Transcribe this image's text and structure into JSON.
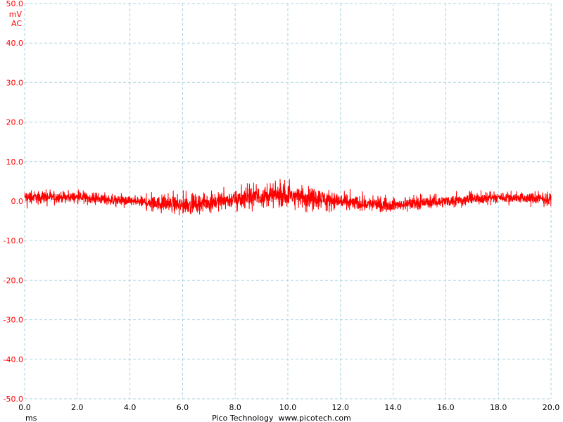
{
  "chart_data": {
    "type": "line",
    "title": "",
    "xlabel": "ms",
    "ylabel": "mV",
    "coupling": "AC",
    "xlim": [
      0.0,
      20.0
    ],
    "ylim": [
      -50.0,
      50.0
    ],
    "x_ticks": [
      "0.0",
      "2.0",
      "4.0",
      "6.0",
      "8.0",
      "10.0",
      "12.0",
      "14.0",
      "16.0",
      "18.0",
      "20.0"
    ],
    "y_ticks": [
      "50.0",
      "40.0",
      "30.0",
      "20.0",
      "10.0",
      "0.0",
      "-10.0",
      "-20.0",
      "-30.0",
      "-40.0",
      "-50.0"
    ],
    "grid": true,
    "grid_style": "dashed",
    "series": [
      {
        "color": "#ff0000",
        "description_kind": "noise envelope (approx.)",
        "x": [
          0,
          2,
          4,
          6,
          8,
          9.5,
          11,
          12.5,
          14,
          16,
          18,
          20
        ],
        "center": [
          1,
          1,
          0,
          -1,
          0.5,
          1.5,
          1,
          -0.5,
          -1,
          0,
          1,
          0.5
        ],
        "min": [
          -2,
          -1,
          -2,
          -4,
          -3,
          -3,
          -3,
          -3,
          -3,
          -2,
          -1,
          -2
        ],
        "max": [
          3,
          3,
          2,
          3,
          4,
          6,
          5,
          3,
          1.5,
          2.5,
          3,
          2.5
        ]
      }
    ]
  },
  "footer": {
    "brand": "Pico Technology  www.picotech.com"
  },
  "colors": {
    "trace": "#ff0000",
    "grid": "#a9d3df",
    "y_labels": "#ff0000",
    "x_labels": "#000000"
  }
}
